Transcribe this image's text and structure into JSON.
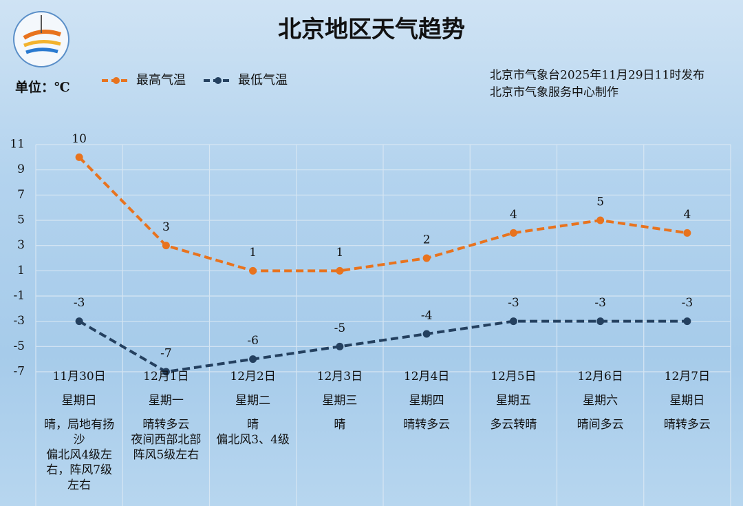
{
  "chart_data": {
    "type": "line",
    "title": "北京地区天气趋势",
    "unit": "单位：℃",
    "issuer": [
      "北京市气象台2025年11月29日11时发布",
      "北京市气象服务中心制作"
    ],
    "categories": [
      "11月30日",
      "12月1日",
      "12月2日",
      "12月3日",
      "12月4日",
      "12月5日",
      "12月6日",
      "12月7日"
    ],
    "weekdays": [
      "星期日",
      "星期一",
      "星期二",
      "星期三",
      "星期四",
      "星期五",
      "星期六",
      "星期日"
    ],
    "weather": [
      [
        "晴，局地有扬沙",
        "偏北风4级左右，阵风7级左右"
      ],
      [
        "晴转多云",
        "夜间西部北部阵风5级左右"
      ],
      [
        "晴",
        "偏北风3、4级"
      ],
      [
        "晴"
      ],
      [
        "晴转多云"
      ],
      [
        "多云转晴"
      ],
      [
        "晴间多云"
      ],
      [
        "晴转多云"
      ]
    ],
    "series": [
      {
        "name": "最高气温",
        "color": "#e8731e",
        "values": [
          10,
          3,
          1,
          1,
          2,
          4,
          5,
          4
        ]
      },
      {
        "name": "最低气温",
        "color": "#24405f",
        "values": [
          -3,
          -7,
          -6,
          -5,
          -4,
          -3,
          -3,
          -3
        ]
      }
    ],
    "ylim": [
      -7,
      11
    ],
    "yticks": [
      11,
      9,
      7,
      5,
      3,
      1,
      -1,
      -3,
      -5,
      -7
    ],
    "grid": true
  }
}
